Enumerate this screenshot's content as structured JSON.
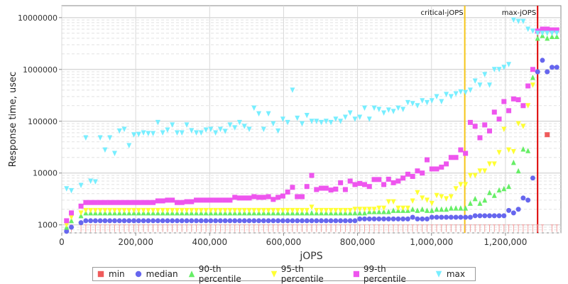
{
  "chart_data": {
    "type": "scatter",
    "xlabel": "jOPS",
    "ylabel": "Response time, usec",
    "xlim": [
      0,
      1350000
    ],
    "ylim": [
      700,
      17000000
    ],
    "log_y": true,
    "grid": true,
    "legend_position": "bottom",
    "x_ticks": [
      0,
      200000,
      400000,
      600000,
      800000,
      1000000,
      1200000
    ],
    "x_tick_labels": [
      "0",
      "200,000",
      "400,000",
      "600,000",
      "800,000",
      "1,000,000",
      "1,200,000"
    ],
    "y_ticks": [
      1000,
      10000,
      100000,
      1000000,
      10000000
    ],
    "y_tick_labels": [
      "1000",
      "10000",
      "100000",
      "1000000",
      "10000000"
    ],
    "markers": [
      {
        "label": "critical-jOPS",
        "x": 1090000,
        "color": "#f5c518"
      },
      {
        "label": "max-jOPS",
        "x": 1287000,
        "color": "#dd0000"
      }
    ],
    "x": [
      13000,
      26000,
      52000,
      65000,
      78000,
      91000,
      104000,
      117000,
      130000,
      143000,
      156000,
      169000,
      182000,
      195000,
      208000,
      221000,
      234000,
      247000,
      260000,
      273000,
      286000,
      299000,
      312000,
      325000,
      338000,
      351000,
      364000,
      377000,
      390000,
      403000,
      416000,
      429000,
      442000,
      455000,
      468000,
      481000,
      494000,
      507000,
      520000,
      533000,
      546000,
      559000,
      572000,
      585000,
      598000,
      611000,
      624000,
      637000,
      650000,
      663000,
      676000,
      689000,
      702000,
      715000,
      728000,
      741000,
      754000,
      767000,
      780000,
      793000,
      806000,
      819000,
      832000,
      845000,
      858000,
      871000,
      884000,
      897000,
      910000,
      923000,
      936000,
      949000,
      962000,
      975000,
      988000,
      1001000,
      1014000,
      1027000,
      1040000,
      1053000,
      1066000,
      1079000,
      1092000,
      1105000,
      1118000,
      1131000,
      1144000,
      1157000,
      1170000,
      1183000,
      1196000,
      1209000,
      1222000,
      1235000,
      1248000,
      1261000,
      1274000,
      1287000,
      1300000,
      1313000,
      1326000,
      1339000
    ],
    "series": [
      {
        "name": "min",
        "color": "#ef5b5b",
        "shape": "square",
        "values": [
          1000,
          1000,
          1000,
          1000,
          1000,
          1000,
          1000,
          1000,
          1000,
          1000,
          1000,
          1000,
          1000,
          1000,
          1000,
          1000,
          1000,
          1000,
          1000,
          1000,
          1000,
          1000,
          1000,
          1000,
          1000,
          1000,
          1000,
          1000,
          1000,
          1000,
          1000,
          1000,
          1000,
          1000,
          1000,
          1000,
          1000,
          1000,
          1000,
          1000,
          1000,
          1000,
          1000,
          1000,
          1000,
          1000,
          1000,
          1000,
          1000,
          1000,
          1000,
          1000,
          1000,
          1000,
          1000,
          1000,
          1000,
          1000,
          1000,
          1000,
          1000,
          1000,
          1000,
          1000,
          1000,
          1000,
          1000,
          1000,
          1000,
          1000,
          1000,
          1000,
          1000,
          1000,
          1000,
          1000,
          1000,
          1000,
          1000,
          1000,
          1000,
          1000,
          1000,
          1000,
          1000,
          1000,
          1000,
          1000,
          1000,
          1000,
          1000,
          1000,
          1000,
          1000,
          1000,
          1000,
          1000,
          1000,
          1000,
          55000,
          1000,
          1000
        ]
      },
      {
        "name": "median",
        "color": "#6666ee",
        "shape": "circle",
        "values": [
          750,
          900,
          1100,
          1200,
          1200,
          1200,
          1200,
          1200,
          1200,
          1200,
          1200,
          1200,
          1200,
          1200,
          1200,
          1200,
          1200,
          1200,
          1200,
          1200,
          1200,
          1200,
          1200,
          1200,
          1200,
          1200,
          1200,
          1200,
          1200,
          1200,
          1200,
          1200,
          1200,
          1200,
          1200,
          1200,
          1200,
          1200,
          1200,
          1200,
          1200,
          1200,
          1200,
          1200,
          1200,
          1200,
          1200,
          1200,
          1200,
          1200,
          1200,
          1200,
          1200,
          1200,
          1200,
          1200,
          1200,
          1200,
          1200,
          1200,
          1300,
          1300,
          1300,
          1300,
          1300,
          1300,
          1300,
          1300,
          1300,
          1300,
          1300,
          1400,
          1300,
          1300,
          1300,
          1400,
          1400,
          1400,
          1400,
          1400,
          1400,
          1400,
          1400,
          1400,
          1500,
          1500,
          1500,
          1500,
          1500,
          1500,
          1500,
          1900,
          1700,
          2000,
          3300,
          3000,
          8000,
          900000,
          1500000,
          900000,
          1100000,
          1100000
        ]
      },
      {
        "name": "90-th percentile",
        "color": "#66ee66",
        "shape": "triangle-up",
        "values": [
          900,
          1200,
          1500,
          1700,
          1700,
          1700,
          1700,
          1700,
          1700,
          1700,
          1700,
          1700,
          1700,
          1700,
          1700,
          1700,
          1700,
          1700,
          1700,
          1700,
          1700,
          1700,
          1700,
          1700,
          1700,
          1700,
          1700,
          1700,
          1700,
          1700,
          1700,
          1700,
          1700,
          1700,
          1700,
          1700,
          1700,
          1700,
          1700,
          1700,
          1700,
          1700,
          1700,
          1700,
          1700,
          1700,
          1700,
          1700,
          1700,
          1700,
          1700,
          1700,
          1700,
          1700,
          1700,
          1700,
          1700,
          1700,
          1700,
          1700,
          1700,
          1700,
          1800,
          1800,
          1800,
          1800,
          1800,
          1900,
          1900,
          1900,
          1900,
          2000,
          1900,
          2000,
          1900,
          1900,
          2000,
          2000,
          2000,
          2100,
          2100,
          2100,
          2100,
          2600,
          3200,
          2600,
          3000,
          4200,
          3700,
          4700,
          5000,
          5500,
          16000,
          11000,
          29000,
          27000,
          700000,
          4000000,
          4500000,
          4000000,
          4300000,
          4300000
        ]
      },
      {
        "name": "95-th percentile",
        "color": "#ffff33",
        "shape": "triangle-down",
        "values": [
          1000,
          1400,
          1700,
          1900,
          1900,
          1900,
          1900,
          1900,
          1900,
          1900,
          1900,
          1900,
          1900,
          1900,
          1900,
          1900,
          1900,
          1900,
          1900,
          1900,
          1900,
          1900,
          1900,
          1900,
          1900,
          1900,
          1900,
          1900,
          1900,
          1900,
          1900,
          1900,
          1900,
          1900,
          1900,
          1900,
          1900,
          1900,
          1900,
          1900,
          1900,
          1900,
          1900,
          1900,
          1900,
          1900,
          1900,
          1900,
          1900,
          1900,
          2200,
          1900,
          1900,
          1900,
          1900,
          1900,
          1900,
          1900,
          1900,
          2000,
          2000,
          2000,
          2000,
          2000,
          2100,
          2100,
          2800,
          2800,
          2100,
          2100,
          2100,
          2900,
          4200,
          3300,
          3000,
          2600,
          3700,
          3500,
          3200,
          3500,
          5000,
          6000,
          6000,
          9000,
          9000,
          11000,
          11000,
          15000,
          15000,
          25000,
          70000,
          28000,
          26000,
          90000,
          80000,
          200000,
          500000,
          5000000,
          5000000,
          5000000,
          5000000,
          5000000
        ]
      },
      {
        "name": "99-th percentile",
        "color": "#ee55ee",
        "shape": "square",
        "values": [
          1200,
          1700,
          2300,
          2700,
          2700,
          2700,
          2700,
          2700,
          2700,
          2700,
          2700,
          2700,
          2700,
          2700,
          2700,
          2700,
          2700,
          2700,
          2900,
          2900,
          3000,
          3000,
          2700,
          2700,
          2800,
          2800,
          3000,
          3000,
          3000,
          3000,
          3000,
          3000,
          3000,
          3000,
          3400,
          3300,
          3300,
          3300,
          3500,
          3400,
          3400,
          3500,
          3100,
          3400,
          3600,
          4300,
          5300,
          3500,
          3500,
          5500,
          9000,
          4800,
          5100,
          5100,
          4700,
          4900,
          6500,
          4800,
          7000,
          6000,
          6300,
          6000,
          5500,
          7500,
          7500,
          6000,
          7600,
          6500,
          7000,
          8000,
          9500,
          8600,
          11000,
          10000,
          18000,
          12000,
          12000,
          13000,
          15000,
          20000,
          20000,
          28000,
          24000,
          95000,
          80000,
          48000,
          85000,
          65000,
          150000,
          110000,
          240000,
          160000,
          270000,
          260000,
          200000,
          480000,
          1000000,
          5500000,
          6000000,
          6000000,
          5800000,
          5800000
        ]
      },
      {
        "name": "max",
        "color": "#77eeff",
        "shape": "triangle-down",
        "values": [
          5000,
          4600,
          5800,
          48000,
          7000,
          6800,
          48000,
          28000,
          48000,
          24000,
          65000,
          70000,
          34000,
          55000,
          56000,
          60000,
          58000,
          58000,
          95000,
          60000,
          68000,
          85000,
          60000,
          60000,
          85000,
          66000,
          60000,
          60000,
          68000,
          70000,
          60000,
          70000,
          64000,
          85000,
          75000,
          95000,
          80000,
          70000,
          180000,
          140000,
          70000,
          140000,
          90000,
          65000,
          110000,
          95000,
          400000,
          115000,
          90000,
          130000,
          100000,
          100000,
          95000,
          100000,
          95000,
          110000,
          100000,
          120000,
          145000,
          110000,
          120000,
          180000,
          110000,
          180000,
          170000,
          145000,
          165000,
          155000,
          180000,
          170000,
          230000,
          220000,
          200000,
          250000,
          230000,
          250000,
          300000,
          240000,
          330000,
          300000,
          340000,
          370000,
          360000,
          400000,
          600000,
          500000,
          800000,
          500000,
          1000000,
          1000000,
          1100000,
          1250000,
          9000000,
          8500000,
          8500000,
          6000000,
          5500000,
          5000000,
          5000000,
          5000000,
          5000000,
          5000000
        ]
      }
    ]
  }
}
